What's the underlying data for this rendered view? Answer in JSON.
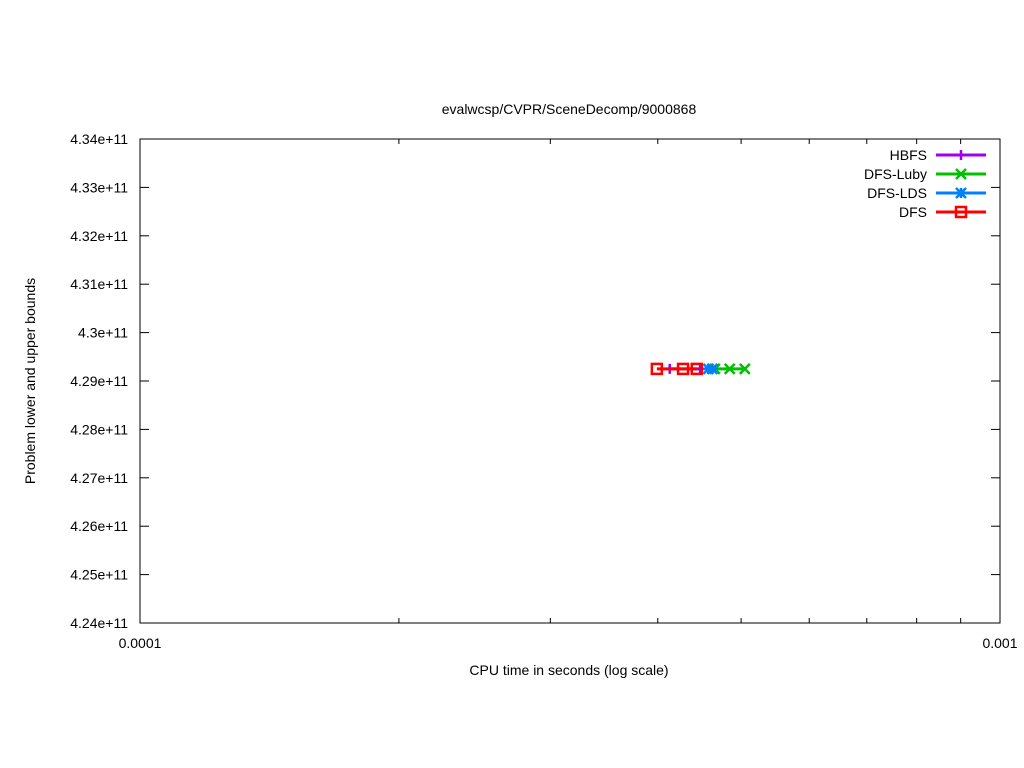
{
  "chart_data": {
    "type": "line",
    "title": "evalwcsp/CVPR/SceneDecomp/9000868",
    "xlabel": "CPU time in seconds (log scale)",
    "ylabel": "Problem lower and upper bounds",
    "xscale": "log",
    "xlim": [
      0.0001,
      0.001
    ],
    "ylim": [
      424000000000.0,
      434000000000.0
    ],
    "xticks": [
      "0.0001",
      "0.001"
    ],
    "yticks": [
      "4.24e+11",
      "4.25e+11",
      "4.26e+11",
      "4.27e+11",
      "4.28e+11",
      "4.29e+11",
      "4.3e+11",
      "4.31e+11",
      "4.32e+11",
      "4.33e+11",
      "4.34e+11"
    ],
    "legend_position": "top-right",
    "grid": false,
    "series": [
      {
        "name": "HBFS",
        "color": "#a000f0",
        "marker": "plus",
        "x": [
          0.000413,
          0.000448
        ],
        "y": [
          429250000000.0,
          429250000000.0
        ]
      },
      {
        "name": "DFS-Luby",
        "color": "#00c000",
        "marker": "cross",
        "x": [
          0.000466,
          0.000485,
          0.000505
        ],
        "y": [
          429250000000.0,
          429250000000.0,
          429250000000.0
        ]
      },
      {
        "name": "DFS-LDS",
        "color": "#0080ff",
        "marker": "star",
        "x": [
          0.000458,
          0.000463
        ],
        "y": [
          429250000000.0,
          429250000000.0
        ]
      },
      {
        "name": "DFS",
        "color": "#ff0000",
        "marker": "square",
        "x": [
          0.000399,
          0.000428,
          0.000444
        ],
        "y": [
          429250000000.0,
          429250000000.0,
          429250000000.0
        ]
      }
    ]
  }
}
